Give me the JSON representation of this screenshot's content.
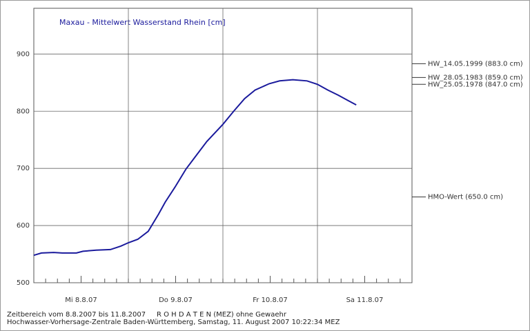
{
  "chart_data": {
    "type": "line",
    "title": "Maxau - Mittelwert Wasserstand Rhein [cm]",
    "series": [
      {
        "name": "Wasserstand",
        "color": "#1a1a9c",
        "x": [
          0,
          0.08,
          0.21,
          0.3,
          0.45,
          0.52,
          0.66,
          0.81,
          0.92,
          1.0,
          1.1,
          1.21,
          1.32,
          1.39,
          1.5,
          1.61,
          1.72,
          1.83,
          2.0,
          2.12,
          2.23,
          2.34,
          2.49,
          2.6,
          2.74,
          2.89,
          3.0,
          3.11,
          3.22,
          3.33,
          3.41
        ],
        "values": [
          548,
          552,
          553,
          552,
          552,
          555,
          557,
          558,
          564,
          570,
          576,
          590,
          620,
          641,
          669,
          699,
          723,
          747,
          777,
          801,
          822,
          837,
          848,
          853,
          855,
          853,
          847,
          837,
          828,
          818,
          811
        ]
      }
    ],
    "xlim": [
      0,
      4
    ],
    "xticks": [
      {
        "value": 0.5,
        "label": "Mi 8.8.07"
      },
      {
        "value": 1.5,
        "label": "Do 9.8.07"
      },
      {
        "value": 2.5,
        "label": "Fr 10.8.07"
      },
      {
        "value": 3.5,
        "label": "Sa 11.8.07"
      }
    ],
    "xgrid": [
      1,
      2,
      3
    ],
    "ylim": [
      500,
      980
    ],
    "yticks": [
      500,
      600,
      700,
      800,
      900
    ],
    "grid": true,
    "reference_lines": [
      {
        "value": 883,
        "label": "HW_14.05.1999 (883.0 cm)"
      },
      {
        "value": 859,
        "label": "HW_28.05.1983 (859.0 cm)"
      },
      {
        "value": 847,
        "label": "HW_25.05.1978 (847.0 cm)"
      },
      {
        "value": 650,
        "label": "HMO-Wert (650.0 cm)"
      }
    ],
    "footer": [
      "Zeitbereich vom 8.8.2007 bis 11.8.2007     R O H D A T E N (MEZ) ohne Gewaehr",
      "Hochwasser-Vorhersage-Zentrale Baden-Württemberg, Samstag, 11. August 2007 10:22:34 MEZ"
    ]
  }
}
